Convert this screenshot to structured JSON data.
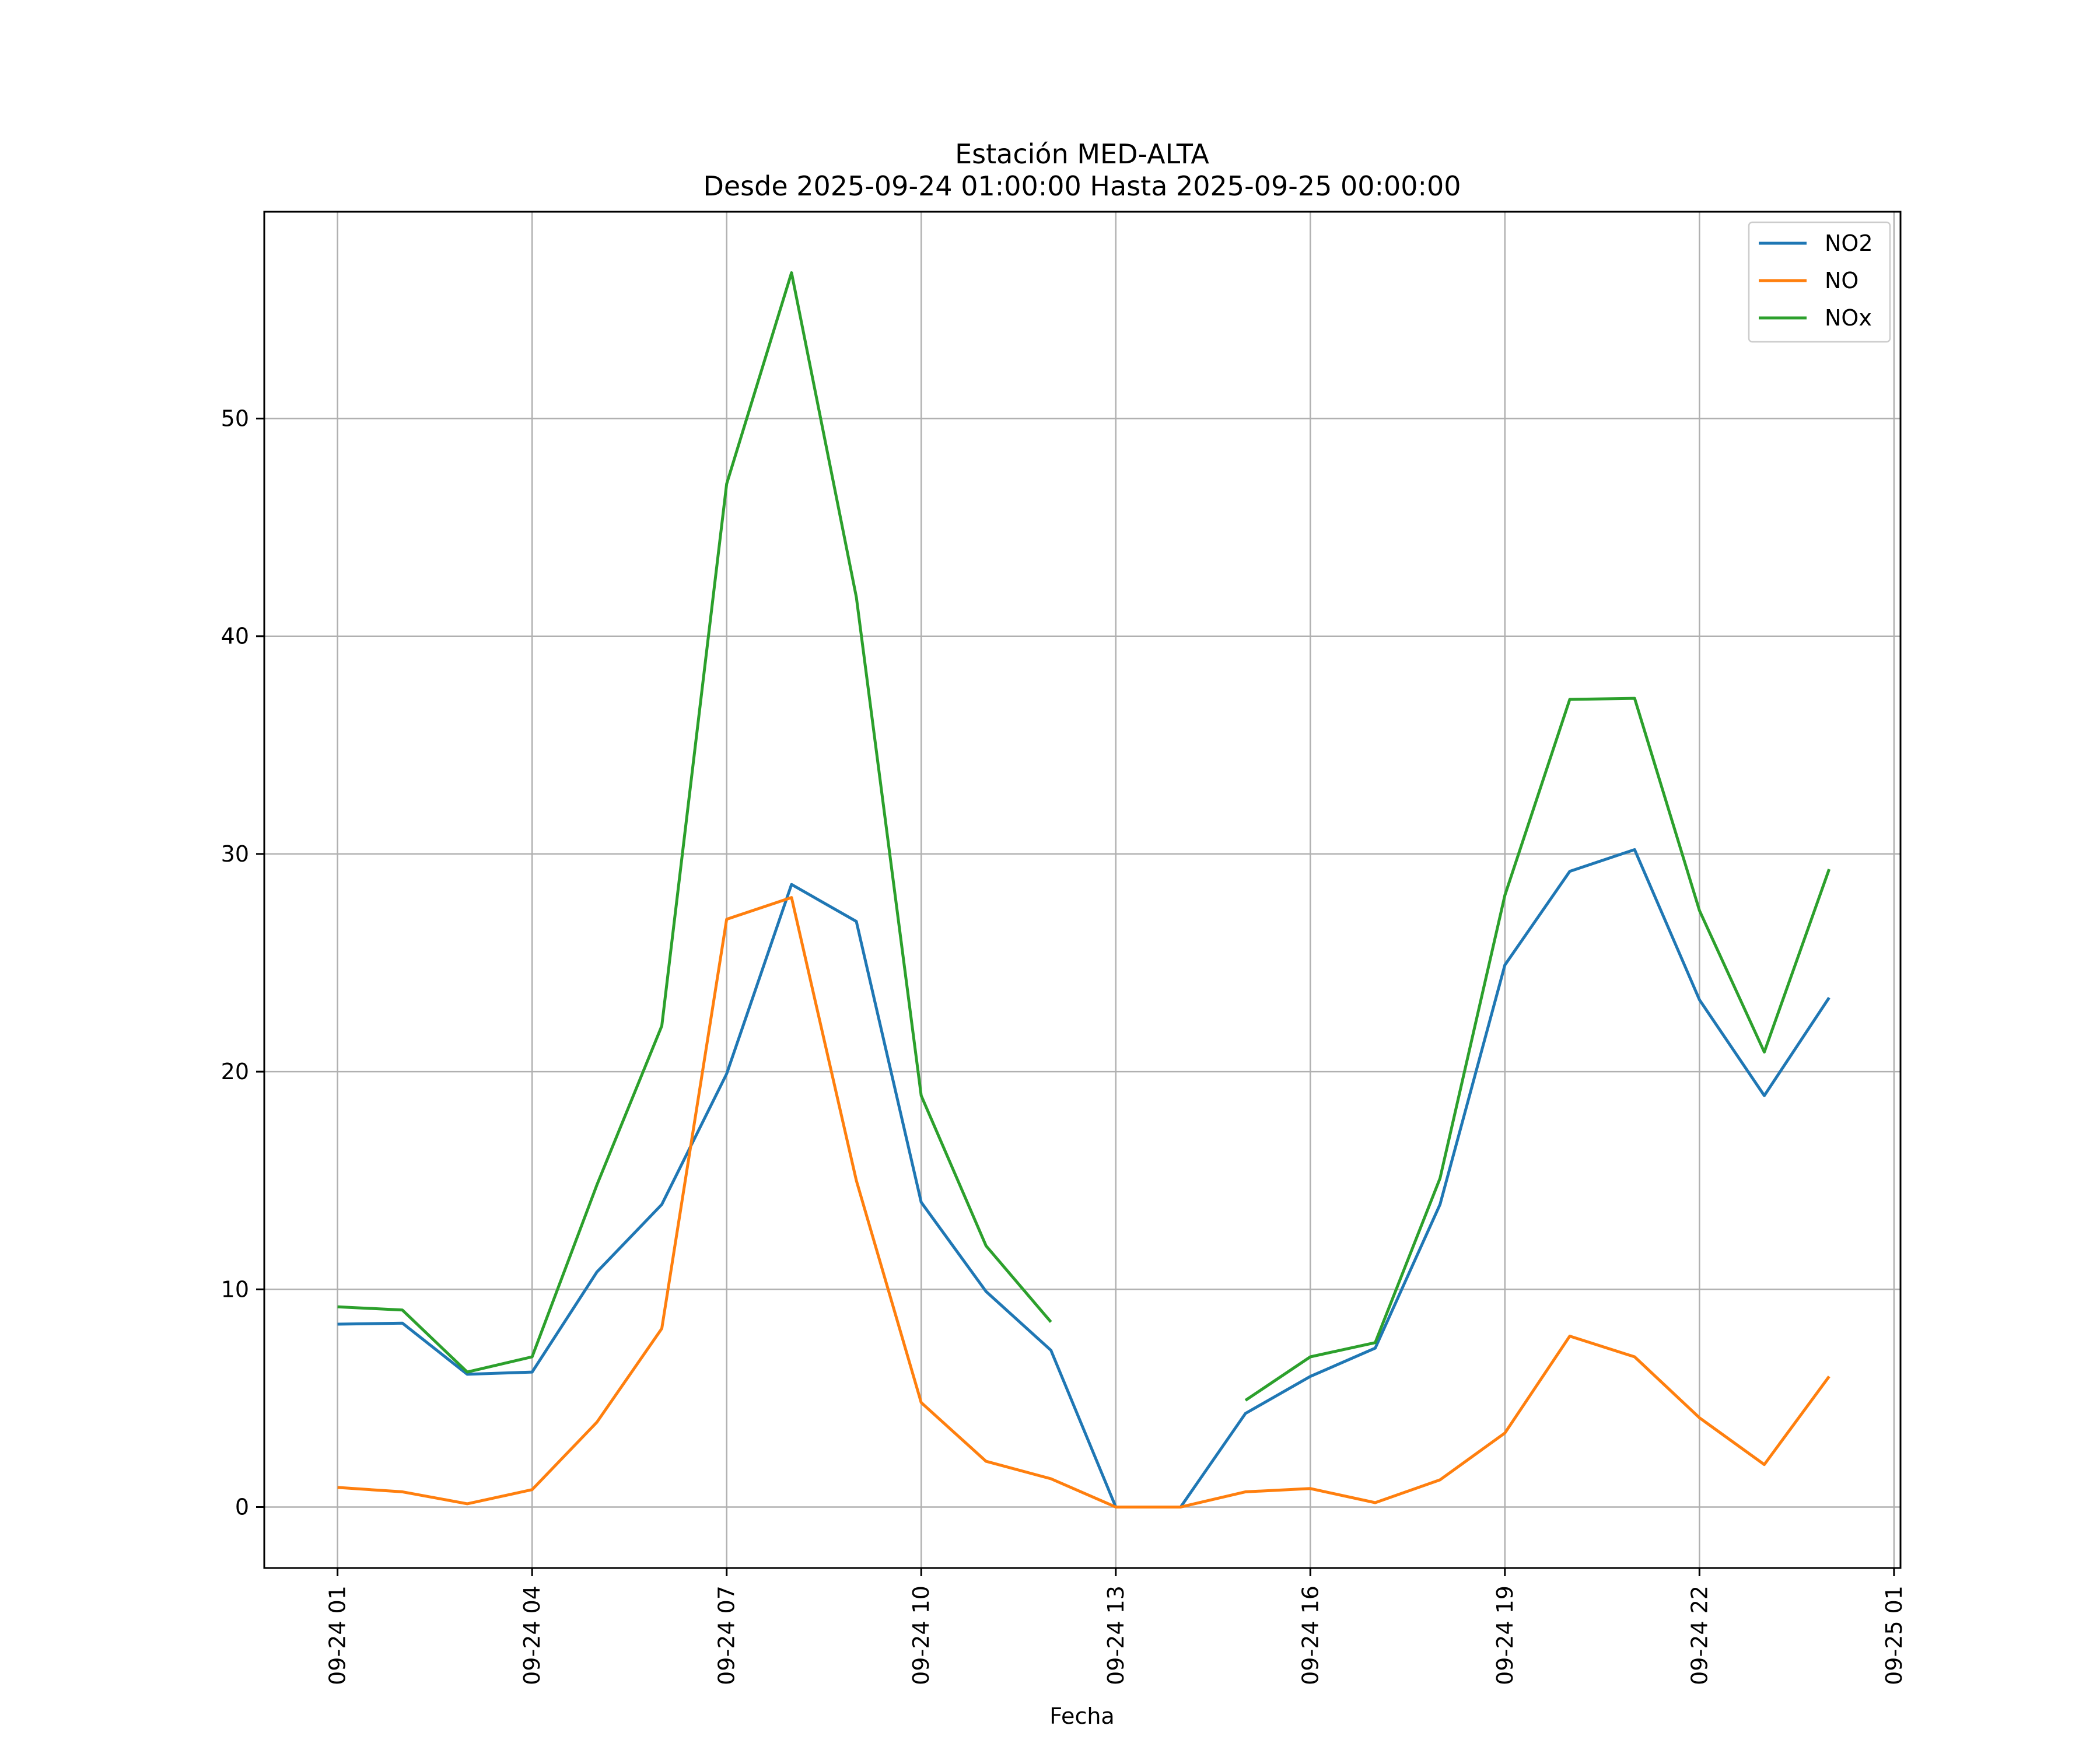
{
  "chart_data": {
    "type": "line",
    "title": "Estación MED-ALTA",
    "subtitle": "Desde 2025-09-24 01:00:00 Hasta 2025-09-25 00:00:00",
    "xlabel": "Fecha",
    "ylabel": "",
    "x": [
      "09-24 01",
      "09-24 02",
      "09-24 03",
      "09-24 04",
      "09-24 05",
      "09-24 06",
      "09-24 07",
      "09-24 08",
      "09-24 09",
      "09-24 10",
      "09-24 11",
      "09-24 12",
      "09-24 13",
      "09-24 14",
      "09-24 15",
      "09-24 16",
      "09-24 17",
      "09-24 18",
      "09-24 19",
      "09-24 20",
      "09-24 21",
      "09-24 22",
      "09-24 23",
      "09-25 00"
    ],
    "x_hours": [
      1,
      2,
      3,
      4,
      5,
      6,
      7,
      8,
      9,
      10,
      11,
      12,
      13,
      14,
      15,
      16,
      17,
      18,
      19,
      20,
      21,
      22,
      23,
      24
    ],
    "x_ticks": [
      "09-24 01",
      "09-24 04",
      "09-24 07",
      "09-24 10",
      "09-24 13",
      "09-24 16",
      "09-24 19",
      "09-24 22",
      "09-25 01"
    ],
    "x_tick_hours": [
      1,
      4,
      7,
      10,
      13,
      16,
      19,
      22,
      25
    ],
    "xlim_hours": [
      -0.13,
      25.1
    ],
    "ylim": [
      -2.8,
      59.5
    ],
    "y_ticks": [
      0,
      10,
      20,
      30,
      40,
      50
    ],
    "grid": true,
    "legend_position": "top-right",
    "series": [
      {
        "name": "NO2",
        "color": "#1f77b4",
        "values": [
          8.4,
          8.45,
          6.1,
          6.2,
          10.8,
          13.9,
          19.9,
          28.6,
          26.9,
          14.0,
          9.9,
          7.2,
          0,
          0,
          4.3,
          6.0,
          7.3,
          13.9,
          24.9,
          29.2,
          30.2,
          23.3,
          18.9,
          23.4
        ]
      },
      {
        "name": "NO",
        "color": "#ff7f0e",
        "values": [
          0.9,
          0.7,
          0.15,
          0.8,
          3.9,
          8.2,
          27.0,
          28.0,
          15.0,
          4.8,
          2.1,
          1.3,
          0,
          0,
          0.7,
          0.85,
          0.2,
          1.25,
          3.4,
          7.85,
          6.9,
          4.1,
          1.95,
          6.0
        ]
      },
      {
        "name": "NOx",
        "color": "#2ca02c",
        "values": [
          9.2,
          9.05,
          6.2,
          6.9,
          14.8,
          22.1,
          47.0,
          56.7,
          41.8,
          18.9,
          12.0,
          8.5,
          null,
          null,
          4.9,
          6.9,
          7.55,
          15.1,
          28.1,
          37.1,
          37.15,
          27.4,
          20.9,
          29.3
        ]
      }
    ]
  }
}
